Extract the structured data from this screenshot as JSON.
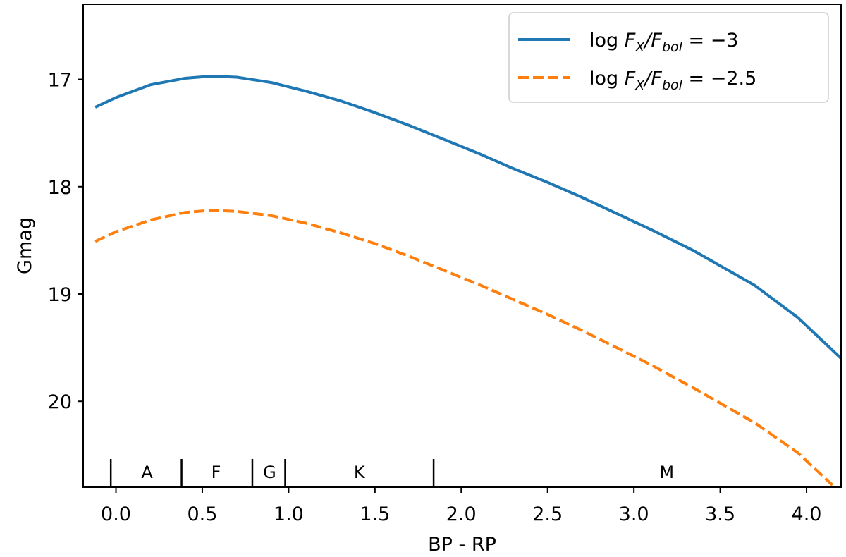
{
  "chart_data": {
    "type": "line",
    "title": "",
    "xlabel": "BP - RP",
    "ylabel": "Gmag",
    "xlim": [
      -0.19,
      4.2
    ],
    "ylim": [
      20.8,
      16.3
    ],
    "y_inverted": true,
    "grid": false,
    "legend_position": "top-right",
    "x_ticks": [
      0.0,
      0.5,
      1.0,
      1.5,
      2.0,
      2.5,
      3.0,
      3.5,
      4.0
    ],
    "x_tick_labels": [
      "0.0",
      "0.5",
      "1.0",
      "1.5",
      "2.0",
      "2.5",
      "3.0",
      "3.5",
      "4.0"
    ],
    "y_ticks": [
      17,
      18,
      19,
      20
    ],
    "y_tick_labels": [
      "17",
      "18",
      "19",
      "20"
    ],
    "series": [
      {
        "name_parts": [
          "log ",
          "F",
          "X",
          "/",
          "F",
          "bol",
          " = −3"
        ],
        "color": "#1f77b4",
        "style": "solid",
        "x": [
          -0.12,
          0.0,
          0.2,
          0.4,
          0.55,
          0.7,
          0.9,
          1.1,
          1.3,
          1.5,
          1.7,
          1.9,
          2.1,
          2.3,
          2.5,
          2.7,
          2.9,
          3.1,
          3.35,
          3.7,
          3.95,
          4.2
        ],
        "y": [
          17.26,
          17.17,
          17.05,
          16.99,
          16.97,
          16.98,
          17.03,
          17.11,
          17.2,
          17.31,
          17.43,
          17.56,
          17.69,
          17.83,
          17.96,
          18.1,
          18.25,
          18.4,
          18.6,
          18.92,
          19.22,
          19.6
        ]
      },
      {
        "name_parts": [
          "log ",
          "F",
          "X",
          "/",
          "F",
          "bol",
          " = −2.5"
        ],
        "color": "#ff7f0e",
        "style": "dashed",
        "x": [
          -0.12,
          0.0,
          0.2,
          0.4,
          0.55,
          0.7,
          0.9,
          1.1,
          1.3,
          1.5,
          1.7,
          1.9,
          2.1,
          2.3,
          2.5,
          2.7,
          2.9,
          3.1,
          3.35,
          3.7,
          3.95,
          4.15
        ],
        "y": [
          18.51,
          18.42,
          18.31,
          18.24,
          18.22,
          18.23,
          18.27,
          18.34,
          18.43,
          18.53,
          18.65,
          18.78,
          18.91,
          19.05,
          19.19,
          19.34,
          19.5,
          19.66,
          19.88,
          20.2,
          20.48,
          20.78
        ]
      }
    ],
    "spectral_classes": {
      "boundaries": [
        -0.03,
        0.38,
        0.79,
        0.98,
        1.84
      ],
      "labels": [
        {
          "text": "A",
          "x": 0.18
        },
        {
          "text": "F",
          "x": 0.58
        },
        {
          "text": "G",
          "x": 0.89
        },
        {
          "text": "K",
          "x": 1.41
        },
        {
          "text": "M",
          "x": 3.19
        }
      ]
    }
  }
}
